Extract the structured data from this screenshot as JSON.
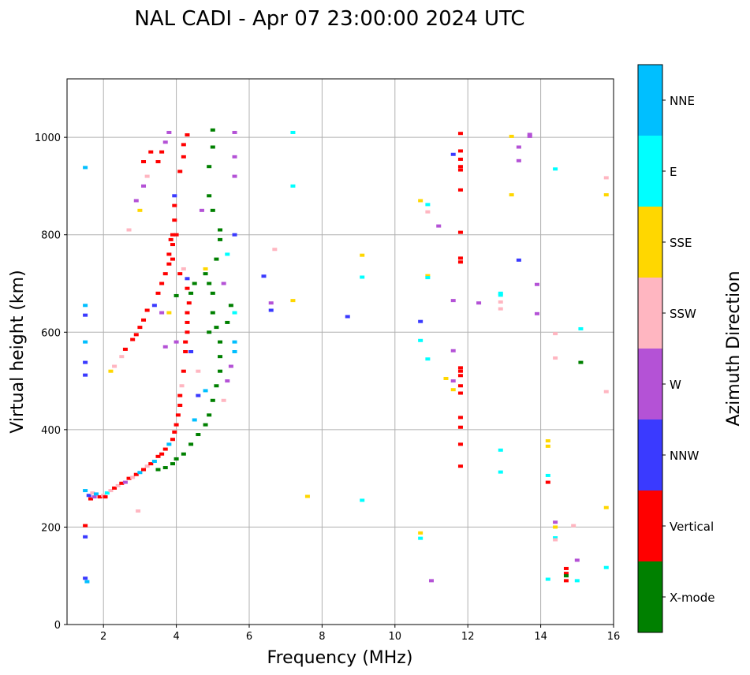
{
  "chart_data": {
    "type": "scatter",
    "title": "NAL CADI - Apr 07 23:00:00 2024 UTC",
    "xlabel": "Frequency (MHz)",
    "ylabel": "Virtual height (km)",
    "xlim": [
      1,
      16
    ],
    "ylim": [
      0,
      1120
    ],
    "xticks": [
      2,
      4,
      6,
      8,
      10,
      12,
      14,
      16
    ],
    "yticks": [
      0,
      200,
      400,
      600,
      800,
      1000
    ],
    "grid": true,
    "colorbar": {
      "label": "Azimuth Direction",
      "categories": [
        {
          "name": "X-mode",
          "color": "#008000"
        },
        {
          "name": "Vertical",
          "color": "#ff0000"
        },
        {
          "name": "NNW",
          "color": "#3a3aff"
        },
        {
          "name": "W",
          "color": "#b452d6"
        },
        {
          "name": "SSW",
          "color": "#ffb6c1"
        },
        {
          "name": "SSE",
          "color": "#ffd700"
        },
        {
          "name": "E",
          "color": "#00ffff"
        },
        {
          "name": "NNE",
          "color": "#00bfff"
        }
      ]
    },
    "point_fields": [
      "frequency_mhz",
      "height_km",
      "direction_index"
    ],
    "points": [
      [
        1.5,
        275,
        7
      ],
      [
        1.6,
        265,
        2
      ],
      [
        1.65,
        258,
        1
      ],
      [
        1.7,
        270,
        4
      ],
      [
        1.75,
        262,
        3
      ],
      [
        1.8,
        268,
        7
      ],
      [
        1.9,
        262,
        1
      ],
      [
        2.0,
        265,
        4
      ],
      [
        2.05,
        262,
        1
      ],
      [
        2.1,
        270,
        6
      ],
      [
        2.2,
        275,
        4
      ],
      [
        2.3,
        280,
        1
      ],
      [
        2.4,
        285,
        4
      ],
      [
        2.5,
        290,
        1
      ],
      [
        2.6,
        292,
        3
      ],
      [
        2.7,
        300,
        1
      ],
      [
        2.8,
        302,
        4
      ],
      [
        2.9,
        308,
        1
      ],
      [
        3.0,
        312,
        7
      ],
      [
        3.1,
        318,
        1
      ],
      [
        3.2,
        325,
        4
      ],
      [
        3.3,
        330,
        1
      ],
      [
        3.4,
        335,
        7
      ],
      [
        3.5,
        345,
        1
      ],
      [
        3.6,
        350,
        1
      ],
      [
        3.7,
        360,
        1
      ],
      [
        3.8,
        370,
        7
      ],
      [
        3.9,
        380,
        1
      ],
      [
        3.95,
        395,
        1
      ],
      [
        4.0,
        410,
        1
      ],
      [
        4.05,
        430,
        1
      ],
      [
        4.1,
        450,
        1
      ],
      [
        4.1,
        470,
        1
      ],
      [
        4.15,
        490,
        4
      ],
      [
        4.2,
        520,
        1
      ],
      [
        4.25,
        560,
        1
      ],
      [
        4.25,
        580,
        1
      ],
      [
        4.3,
        600,
        1
      ],
      [
        4.3,
        620,
        1
      ],
      [
        4.3,
        640,
        1
      ],
      [
        4.35,
        660,
        1
      ],
      [
        4.3,
        690,
        1
      ],
      [
        4.3,
        710,
        2
      ],
      [
        4.1,
        720,
        1
      ],
      [
        3.9,
        750,
        1
      ],
      [
        3.9,
        780,
        1
      ],
      [
        3.9,
        800,
        1
      ],
      [
        4.0,
        800,
        1
      ],
      [
        3.95,
        830,
        1
      ],
      [
        3.95,
        860,
        1
      ],
      [
        3.95,
        880,
        2
      ],
      [
        4.1,
        930,
        1
      ],
      [
        4.2,
        960,
        1
      ],
      [
        4.3,
        1005,
        1
      ],
      [
        4.2,
        985,
        1
      ],
      [
        2.2,
        520,
        5
      ],
      [
        2.3,
        530,
        4
      ],
      [
        2.5,
        550,
        4
      ],
      [
        2.6,
        565,
        1
      ],
      [
        2.8,
        585,
        1
      ],
      [
        2.9,
        595,
        1
      ],
      [
        3.0,
        610,
        1
      ],
      [
        3.1,
        625,
        1
      ],
      [
        3.2,
        645,
        1
      ],
      [
        3.4,
        655,
        2
      ],
      [
        3.5,
        680,
        1
      ],
      [
        3.6,
        700,
        1
      ],
      [
        3.7,
        720,
        1
      ],
      [
        3.8,
        740,
        1
      ],
      [
        3.8,
        760,
        1
      ],
      [
        3.85,
        790,
        1
      ],
      [
        3.0,
        850,
        5
      ],
      [
        3.1,
        900,
        3
      ],
      [
        3.2,
        920,
        4
      ],
      [
        3.1,
        950,
        1
      ],
      [
        3.3,
        970,
        1
      ],
      [
        3.5,
        950,
        1
      ],
      [
        3.6,
        970,
        1
      ],
      [
        3.7,
        990,
        3
      ],
      [
        3.8,
        1010,
        3
      ],
      [
        2.9,
        870,
        3
      ],
      [
        2.7,
        810,
        4
      ],
      [
        3.5,
        318,
        0
      ],
      [
        3.7,
        322,
        0
      ],
      [
        3.9,
        330,
        0
      ],
      [
        4.0,
        340,
        0
      ],
      [
        4.2,
        350,
        0
      ],
      [
        4.4,
        370,
        0
      ],
      [
        4.6,
        390,
        0
      ],
      [
        4.8,
        410,
        0
      ],
      [
        4.9,
        430,
        0
      ],
      [
        5.0,
        460,
        0
      ],
      [
        5.1,
        490,
        0
      ],
      [
        5.2,
        520,
        0
      ],
      [
        5.2,
        550,
        0
      ],
      [
        5.2,
        580,
        0
      ],
      [
        5.1,
        610,
        0
      ],
      [
        5.0,
        640,
        0
      ],
      [
        5.0,
        680,
        0
      ],
      [
        4.9,
        700,
        0
      ],
      [
        4.8,
        720,
        0
      ],
      [
        5.1,
        750,
        0
      ],
      [
        5.2,
        790,
        0
      ],
      [
        5.2,
        810,
        0
      ],
      [
        5.0,
        850,
        0
      ],
      [
        4.9,
        880,
        0
      ],
      [
        4.9,
        940,
        0
      ],
      [
        5.0,
        980,
        0
      ],
      [
        5.0,
        1015,
        0
      ],
      [
        4.4,
        680,
        0
      ],
      [
        4.5,
        700,
        0
      ],
      [
        4.0,
        675,
        0
      ],
      [
        5.4,
        620,
        0
      ],
      [
        5.5,
        655,
        0
      ],
      [
        4.9,
        600,
        0
      ],
      [
        5.6,
        560,
        7
      ],
      [
        5.6,
        580,
        7
      ],
      [
        5.5,
        530,
        3
      ],
      [
        5.4,
        500,
        3
      ],
      [
        5.3,
        700,
        3
      ],
      [
        5.6,
        640,
        6
      ],
      [
        5.6,
        1010,
        3
      ],
      [
        5.6,
        960,
        3
      ],
      [
        5.6,
        920,
        3
      ],
      [
        5.6,
        800,
        2
      ],
      [
        5.4,
        760,
        6
      ],
      [
        4.8,
        730,
        5
      ],
      [
        4.7,
        850,
        3
      ],
      [
        4.2,
        730,
        4
      ],
      [
        4.0,
        580,
        3
      ],
      [
        4.4,
        560,
        2
      ],
      [
        4.6,
        470,
        2
      ],
      [
        4.5,
        420,
        7
      ],
      [
        4.8,
        480,
        7
      ],
      [
        4.6,
        520,
        4
      ],
      [
        5.3,
        460,
        4
      ],
      [
        3.6,
        640,
        3
      ],
      [
        3.7,
        570,
        3
      ],
      [
        3.8,
        640,
        5
      ],
      [
        6.4,
        715,
        2
      ],
      [
        6.6,
        660,
        3
      ],
      [
        6.6,
        645,
        2
      ],
      [
        6.7,
        770,
        4
      ],
      [
        7.2,
        665,
        5
      ],
      [
        7.2,
        1010,
        6
      ],
      [
        7.2,
        900,
        6
      ],
      [
        7.6,
        263,
        5
      ],
      [
        8.7,
        632,
        2
      ],
      [
        9.1,
        758,
        5
      ],
      [
        9.1,
        713,
        6
      ],
      [
        9.1,
        255,
        6
      ],
      [
        10.7,
        870,
        5
      ],
      [
        10.7,
        622,
        2
      ],
      [
        10.7,
        583,
        6
      ],
      [
        10.7,
        188,
        5
      ],
      [
        10.7,
        177,
        6
      ],
      [
        10.9,
        862,
        6
      ],
      [
        10.9,
        847,
        4
      ],
      [
        10.9,
        716,
        5
      ],
      [
        10.9,
        712,
        6
      ],
      [
        10.9,
        545,
        6
      ],
      [
        11.0,
        90,
        3
      ],
      [
        11.2,
        818,
        3
      ],
      [
        11.4,
        505,
        5
      ],
      [
        11.6,
        665,
        3
      ],
      [
        11.6,
        562,
        3
      ],
      [
        11.6,
        500,
        3
      ],
      [
        11.6,
        482,
        5
      ],
      [
        11.6,
        965,
        2
      ],
      [
        11.8,
        1008,
        1
      ],
      [
        11.8,
        972,
        1
      ],
      [
        11.8,
        955,
        1
      ],
      [
        11.8,
        940,
        1
      ],
      [
        11.8,
        933,
        1
      ],
      [
        11.8,
        892,
        1
      ],
      [
        11.8,
        805,
        1
      ],
      [
        11.8,
        752,
        1
      ],
      [
        11.8,
        744,
        1
      ],
      [
        11.8,
        527,
        1
      ],
      [
        11.8,
        520,
        1
      ],
      [
        11.8,
        511,
        1
      ],
      [
        11.8,
        490,
        1
      ],
      [
        11.8,
        475,
        1
      ],
      [
        11.8,
        425,
        1
      ],
      [
        11.8,
        405,
        1
      ],
      [
        11.8,
        370,
        1
      ],
      [
        11.8,
        325,
        1
      ],
      [
        12.3,
        660,
        3
      ],
      [
        12.9,
        680,
        6
      ],
      [
        12.9,
        676,
        6
      ],
      [
        12.9,
        662,
        4
      ],
      [
        12.9,
        648,
        4
      ],
      [
        12.9,
        358,
        6
      ],
      [
        12.9,
        313,
        6
      ],
      [
        13.2,
        1002,
        5
      ],
      [
        13.2,
        882,
        5
      ],
      [
        13.4,
        980,
        3
      ],
      [
        13.4,
        952,
        3
      ],
      [
        13.4,
        748,
        2
      ],
      [
        13.7,
        1002,
        3
      ],
      [
        13.7,
        1006,
        3
      ],
      [
        13.9,
        698,
        3
      ],
      [
        13.9,
        638,
        3
      ],
      [
        14.2,
        377,
        5
      ],
      [
        14.2,
        366,
        5
      ],
      [
        14.2,
        306,
        6
      ],
      [
        14.2,
        292,
        1
      ],
      [
        14.2,
        93,
        6
      ],
      [
        14.4,
        935,
        6
      ],
      [
        14.4,
        597,
        4
      ],
      [
        14.4,
        547,
        4
      ],
      [
        14.4,
        210,
        3
      ],
      [
        14.4,
        200,
        5
      ],
      [
        14.4,
        178,
        6
      ],
      [
        14.4,
        174,
        4
      ],
      [
        14.7,
        115,
        1
      ],
      [
        14.7,
        105,
        1
      ],
      [
        14.7,
        100,
        0
      ],
      [
        14.7,
        90,
        1
      ],
      [
        14.9,
        203,
        4
      ],
      [
        15.0,
        132,
        3
      ],
      [
        15.0,
        90,
        6
      ],
      [
        15.1,
        607,
        6
      ],
      [
        15.1,
        538,
        0
      ],
      [
        15.8,
        917,
        4
      ],
      [
        15.8,
        882,
        5
      ],
      [
        15.8,
        478,
        4
      ],
      [
        15.8,
        240,
        5
      ],
      [
        15.8,
        117,
        6
      ],
      [
        1.5,
        938,
        7
      ],
      [
        1.5,
        655,
        7
      ],
      [
        1.5,
        635,
        2
      ],
      [
        1.5,
        580,
        7
      ],
      [
        1.5,
        538,
        2
      ],
      [
        1.5,
        512,
        2
      ],
      [
        1.5,
        203,
        1
      ],
      [
        1.5,
        180,
        2
      ],
      [
        1.5,
        95,
        2
      ],
      [
        1.55,
        88,
        7
      ],
      [
        2.95,
        233,
        4
      ]
    ]
  }
}
